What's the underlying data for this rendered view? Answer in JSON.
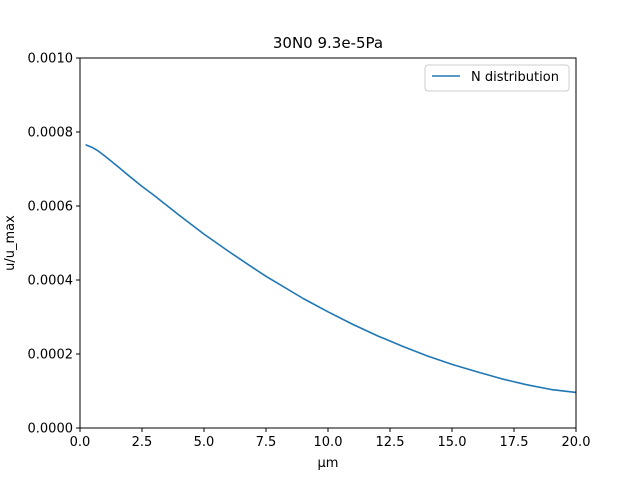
{
  "chart_data": {
    "type": "line",
    "title": "30N0 9.3e-5Pa",
    "xlabel": "μm",
    "ylabel": "u/u_max",
    "xlim": [
      0.0,
      20.0
    ],
    "ylim": [
      0.0,
      0.001
    ],
    "xticks": [
      "0.0",
      "2.5",
      "5.0",
      "7.5",
      "10.0",
      "12.5",
      "15.0",
      "17.5",
      "20.0"
    ],
    "yticks": [
      "0.0000",
      "0.0002",
      "0.0004",
      "0.0006",
      "0.0008",
      "0.0010"
    ],
    "legend_position": "top-right",
    "grid": false,
    "series": [
      {
        "name": "N distribution",
        "color": "#1f77b4",
        "x": [
          0.25,
          0.5,
          0.75,
          1.0,
          1.5,
          2.0,
          2.5,
          3.0,
          4.0,
          5.0,
          6.0,
          7.0,
          7.5,
          8.0,
          9.0,
          10.0,
          11.0,
          12.0,
          12.5,
          13.0,
          14.0,
          15.0,
          16.0,
          17.0,
          17.5,
          18.0,
          19.0,
          20.0
        ],
        "y": [
          0.000765,
          0.000758,
          0.000748,
          0.000735,
          0.000708,
          0.00068,
          0.000653,
          0.000628,
          0.000575,
          0.000524,
          0.000477,
          0.000432,
          0.00041,
          0.00039,
          0.00035,
          0.000314,
          0.00028,
          0.000249,
          0.000235,
          0.000221,
          0.000195,
          0.000172,
          0.000152,
          0.000133,
          0.000125,
          0.000117,
          0.000104,
          9.6e-05
        ]
      }
    ]
  }
}
